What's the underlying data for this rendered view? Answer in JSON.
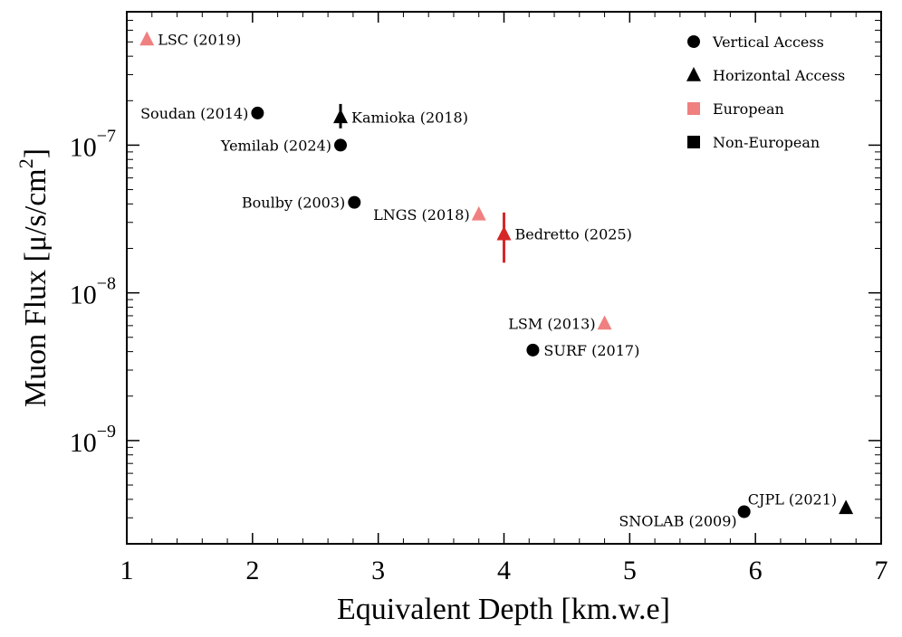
{
  "chart_data": {
    "type": "scatter",
    "xlabel": "Equivalent Depth  [km.w.e]",
    "ylabel": "Muon Flux [μ/s/cm²]",
    "ylabel_parts": {
      "main": "Muon Flux [μ/s/cm",
      "sup": "2",
      "end": "]"
    },
    "xlim": [
      1,
      7
    ],
    "ylim": [
      2e-10,
      8e-07
    ],
    "yscale": "log",
    "xticks": [
      1,
      2,
      3,
      4,
      5,
      6,
      7
    ],
    "xtick_labels": [
      "1",
      "2",
      "3",
      "4",
      "5",
      "6",
      "7"
    ],
    "yticks": [
      {
        "value": 1e-09,
        "base": "10",
        "exp": "−9"
      },
      {
        "value": 1e-08,
        "base": "10",
        "exp": "−8"
      },
      {
        "value": 1e-07,
        "base": "10",
        "exp": "−7"
      }
    ],
    "colors": {
      "european": "#f08080",
      "non_european": "#000000",
      "highlight": "#d62728"
    },
    "legend": {
      "position": "top-right",
      "entries": [
        {
          "label": "Vertical Access",
          "marker": "circle",
          "color": "#000000"
        },
        {
          "label": "Horizontal Access",
          "marker": "triangle",
          "color": "#000000"
        },
        {
          "label": "European",
          "marker": "square",
          "color": "#f08080"
        },
        {
          "label": "Non-European",
          "marker": "square",
          "color": "#000000"
        }
      ]
    },
    "points": [
      {
        "label": "LSC (2019)",
        "x": 1.16,
        "y": 5.2e-07,
        "marker": "triangle",
        "color": "#f08080",
        "label_side": "right"
      },
      {
        "label": "Soudan (2014)",
        "x": 2.04,
        "y": 1.65e-07,
        "marker": "circle",
        "color": "#000000",
        "label_side": "left"
      },
      {
        "label": "Kamioka (2018)",
        "x": 2.7,
        "y": 1.55e-07,
        "marker": "triangle",
        "color": "#000000",
        "label_side": "right",
        "yerr": [
          1.3e-07,
          1.9e-07
        ]
      },
      {
        "label": "Yemilab (2024)",
        "x": 2.7,
        "y": 1e-07,
        "marker": "circle",
        "color": "#000000",
        "label_side": "left"
      },
      {
        "label": "Boulby (2003)",
        "x": 2.81,
        "y": 4.1e-08,
        "marker": "circle",
        "color": "#000000",
        "label_side": "left"
      },
      {
        "label": "LNGS (2018)",
        "x": 3.8,
        "y": 3.4e-08,
        "marker": "triangle",
        "color": "#f08080",
        "label_side": "left"
      },
      {
        "label": "Bedretto (2025)",
        "x": 4.0,
        "y": 2.5e-08,
        "marker": "triangle",
        "color": "#d62728",
        "label_side": "right",
        "yerr": [
          1.6e-08,
          3.5e-08
        ]
      },
      {
        "label": "LSM (2013)",
        "x": 4.8,
        "y": 6.2e-09,
        "marker": "triangle",
        "color": "#f08080",
        "label_side": "left"
      },
      {
        "label": "SURF (2017)",
        "x": 4.23,
        "y": 4.1e-09,
        "marker": "circle",
        "color": "#000000",
        "label_side": "right"
      },
      {
        "label": "SNOLAB (2009)",
        "x": 5.91,
        "y": 3.3e-10,
        "marker": "circle",
        "color": "#000000",
        "label_side": "left-below"
      },
      {
        "label": "CJPL (2021)",
        "x": 6.72,
        "y": 3.5e-10,
        "marker": "triangle",
        "color": "#000000",
        "label_side": "left-above"
      }
    ]
  }
}
